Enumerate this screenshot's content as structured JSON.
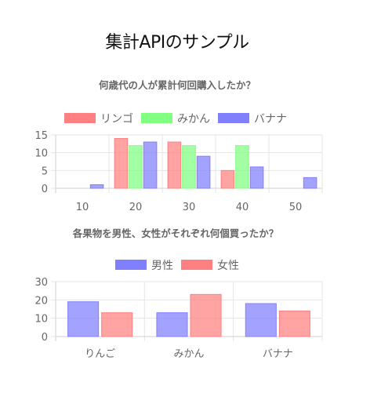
{
  "page": {
    "title": "集計APIのサンプル"
  },
  "chart_data": [
    {
      "type": "bar",
      "title": "何歳代の人が累計何回購入したか？",
      "categories": [
        "10",
        "20",
        "30",
        "40",
        "50"
      ],
      "series": [
        {
          "name": "リンゴ",
          "values": [
            0,
            14,
            13,
            5,
            0
          ],
          "color": "#ff8080"
        },
        {
          "name": "みかん",
          "values": [
            0,
            12,
            12,
            12,
            0
          ],
          "color": "#80ff80"
        },
        {
          "name": "バナナ",
          "values": [
            1,
            13,
            9,
            6,
            3
          ],
          "color": "#8080ff"
        }
      ],
      "ylim": [
        0,
        15
      ],
      "yticks": [
        0,
        5,
        10,
        15
      ],
      "grid": true,
      "legend": "top"
    },
    {
      "type": "bar",
      "title": "各果物を男性、女性がそれぞれ何個買ったか？",
      "categories": [
        "りんご",
        "みかん",
        "バナナ"
      ],
      "series": [
        {
          "name": "男性",
          "values": [
            19,
            13,
            18
          ],
          "color": "#8080ff"
        },
        {
          "name": "女性",
          "values": [
            13,
            23,
            14
          ],
          "color": "#ff8080"
        }
      ],
      "ylim": [
        0,
        30
      ],
      "yticks": [
        0,
        10,
        20,
        30
      ],
      "grid": true,
      "legend": "top"
    }
  ]
}
